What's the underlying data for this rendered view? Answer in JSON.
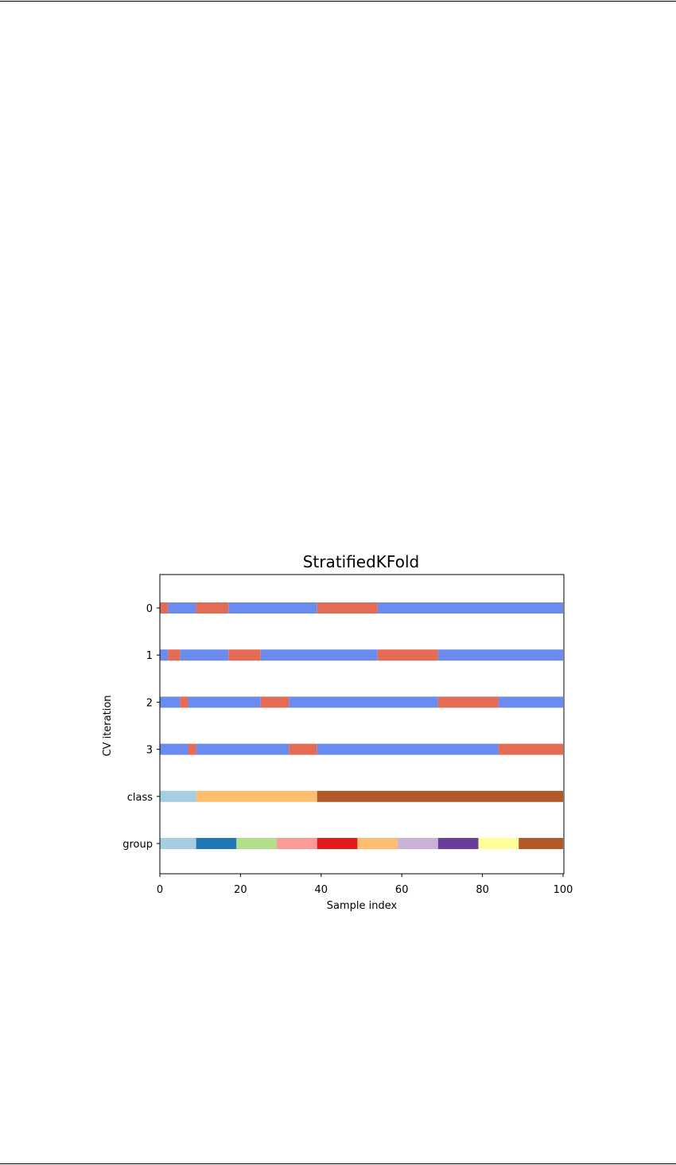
{
  "chart_data": {
    "type": "bar",
    "title": "StratifiedKFold",
    "xlabel": "Sample index",
    "ylabel": "CV iteration",
    "xlim": [
      0,
      100
    ],
    "xticks": [
      "0",
      "20",
      "40",
      "60",
      "80",
      "100"
    ],
    "rows": [
      {
        "label": "0",
        "segments": [
          {
            "start": 0,
            "end": 2,
            "role": "test"
          },
          {
            "start": 2,
            "end": 9,
            "role": "train"
          },
          {
            "start": 9,
            "end": 17,
            "role": "test"
          },
          {
            "start": 17,
            "end": 39,
            "role": "train"
          },
          {
            "start": 39,
            "end": 54,
            "role": "test"
          },
          {
            "start": 54,
            "end": 100,
            "role": "train"
          }
        ]
      },
      {
        "label": "1",
        "segments": [
          {
            "start": 0,
            "end": 2,
            "role": "train"
          },
          {
            "start": 2,
            "end": 5,
            "role": "test"
          },
          {
            "start": 5,
            "end": 17,
            "role": "train"
          },
          {
            "start": 17,
            "end": 25,
            "role": "test"
          },
          {
            "start": 25,
            "end": 54,
            "role": "train"
          },
          {
            "start": 54,
            "end": 69,
            "role": "test"
          },
          {
            "start": 69,
            "end": 100,
            "role": "train"
          }
        ]
      },
      {
        "label": "2",
        "segments": [
          {
            "start": 0,
            "end": 5,
            "role": "train"
          },
          {
            "start": 5,
            "end": 7,
            "role": "test"
          },
          {
            "start": 7,
            "end": 25,
            "role": "train"
          },
          {
            "start": 25,
            "end": 32,
            "role": "test"
          },
          {
            "start": 32,
            "end": 69,
            "role": "train"
          },
          {
            "start": 69,
            "end": 84,
            "role": "test"
          },
          {
            "start": 84,
            "end": 100,
            "role": "train"
          }
        ]
      },
      {
        "label": "3",
        "segments": [
          {
            "start": 0,
            "end": 7,
            "role": "train"
          },
          {
            "start": 7,
            "end": 9,
            "role": "test"
          },
          {
            "start": 9,
            "end": 32,
            "role": "train"
          },
          {
            "start": 32,
            "end": 39,
            "role": "test"
          },
          {
            "start": 39,
            "end": 84,
            "role": "train"
          },
          {
            "start": 84,
            "end": 100,
            "role": "test"
          }
        ]
      },
      {
        "label": "class",
        "segments": [
          {
            "start": 0,
            "end": 9,
            "color": "#a6cee3"
          },
          {
            "start": 9,
            "end": 39,
            "color": "#fdbf6f"
          },
          {
            "start": 39,
            "end": 100,
            "color": "#b15928"
          }
        ]
      },
      {
        "label": "group",
        "segments": [
          {
            "start": 0,
            "end": 9,
            "color": "#a6cee3"
          },
          {
            "start": 9,
            "end": 19,
            "color": "#1f78b4"
          },
          {
            "start": 19,
            "end": 29,
            "color": "#b2df8a"
          },
          {
            "start": 29,
            "end": 39,
            "color": "#fb9a99"
          },
          {
            "start": 39,
            "end": 49,
            "color": "#e31a1c"
          },
          {
            "start": 49,
            "end": 59,
            "color": "#fdbf6f"
          },
          {
            "start": 59,
            "end": 69,
            "color": "#cab2d6"
          },
          {
            "start": 69,
            "end": 79,
            "color": "#6a3d9a"
          },
          {
            "start": 79,
            "end": 89,
            "color": "#ffff99"
          },
          {
            "start": 89,
            "end": 100,
            "color": "#b15928"
          }
        ]
      }
    ],
    "colors": {
      "train": "#6b8bef",
      "test": "#e46c55"
    },
    "grid": false
  }
}
